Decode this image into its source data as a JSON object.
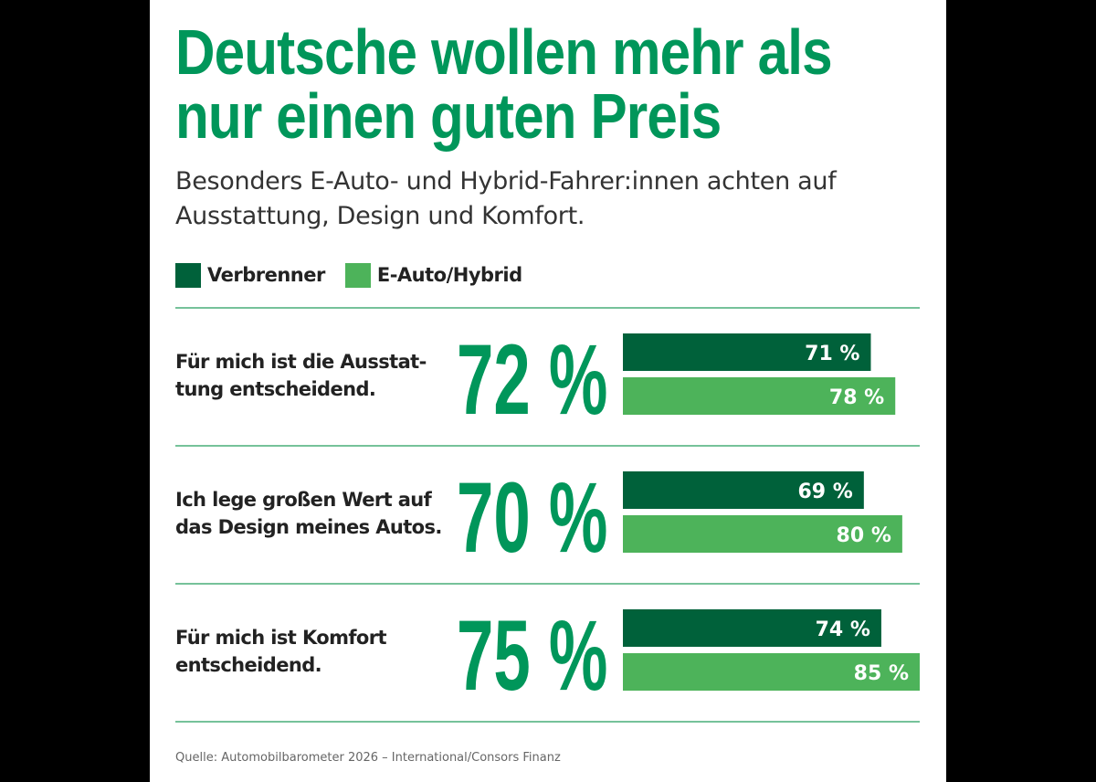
{
  "title_lines": [
    "Deutsche wollen mehr als",
    "nur einen guten Preis"
  ],
  "subtitle_lines": [
    "Besonders E-Auto- und Hybrid-Fahrer:innen achten auf",
    "Ausstattung, Design und Komfort."
  ],
  "source": "Quelle: Automobilbarometer 2026 – International/Consors Finanz",
  "colors": {
    "title": "#00965a",
    "big_percent": "#00965a",
    "verbrenner": "#00613a",
    "ehybrid": "#4db35a",
    "divider": "#48ad78"
  },
  "chart_data": {
    "type": "bar",
    "orientation": "horizontal",
    "unit": "%",
    "xlim": [
      0,
      85
    ],
    "grid": false,
    "legend_position": "top-left",
    "series": [
      {
        "name": "Verbrenner",
        "color": "#00613a",
        "values": [
          71,
          69,
          74
        ],
        "labels": [
          "71 %",
          "69 %",
          "74 %"
        ]
      },
      {
        "name": "E-Auto/Hybrid",
        "color": "#4db35a",
        "values": [
          78,
          80,
          85
        ],
        "labels": [
          "78 %",
          "80 %",
          "85 %"
        ]
      }
    ],
    "rows": [
      {
        "statement_lines": [
          "Für mich ist die Ausstat-",
          "tung entscheidend."
        ],
        "total": 72,
        "total_label": "72 %"
      },
      {
        "statement_lines": [
          "Ich lege großen Wert auf",
          "das Design meines Autos."
        ],
        "total": 70,
        "total_label": "70 %"
      },
      {
        "statement_lines": [
          "Für mich ist Komfort",
          "entscheidend."
        ],
        "total": 75,
        "total_label": "75 %"
      }
    ]
  }
}
